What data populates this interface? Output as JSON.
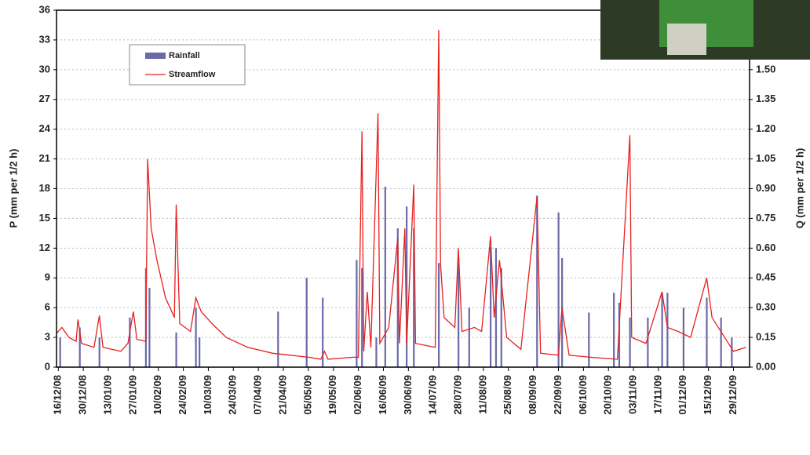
{
  "chart_data": {
    "type": "bar-line",
    "y_label": "P (mm per 1/2 h)",
    "y2_label": "Q (mm per 1/2 h)",
    "xlim": [
      "15/12/08",
      "07/01/10"
    ],
    "xticks": [
      "16/12/08",
      "30/12/08",
      "13/01/09",
      "27/01/09",
      "10/02/09",
      "24/02/09",
      "10/03/09",
      "24/03/09",
      "07/04/09",
      "21/04/09",
      "05/05/09",
      "19/05/09",
      "02/06/09",
      "16/06/09",
      "30/06/09",
      "14/07/09",
      "28/07/09",
      "11/08/09",
      "25/08/09",
      "08/09/09",
      "22/09/09",
      "06/10/09",
      "20/10/09",
      "03/11/09",
      "17/11/09",
      "01/12/09",
      "15/12/09",
      "29/12/09"
    ],
    "ylim": [
      0,
      36
    ],
    "yticks": [
      0,
      3,
      6,
      9,
      12,
      15,
      18,
      21,
      24,
      27,
      30,
      33,
      36
    ],
    "y2lim": [
      0,
      1.8
    ],
    "y2ticks": [
      {
        "value": 0,
        "label": "0.00"
      },
      {
        "value": 0.15,
        "label": "0.15"
      },
      {
        "value": 0.3,
        "label": "0.30"
      },
      {
        "value": 0.45,
        "label": "0.45"
      },
      {
        "value": 0.6,
        "label": "0.60"
      },
      {
        "value": 0.75,
        "label": "0.75"
      },
      {
        "value": 0.9,
        "label": "0.90"
      },
      {
        "value": 1.05,
        "label": "1.05"
      },
      {
        "value": 1.2,
        "label": "1.20"
      },
      {
        "value": 1.35,
        "label": "1.35"
      },
      {
        "value": 1.5,
        "label": "1.50"
      }
    ],
    "grid": true,
    "legend": "upper left",
    "series": [
      {
        "name": "Rainfall",
        "type": "bar",
        "color": "#6a6aa8",
        "x": [
          "17/12/08",
          "28/12/08",
          "08/01/09",
          "25/01/09",
          "03/02/09",
          "05/02/09",
          "20/02/09",
          "03/03/09",
          "05/03/09",
          "18/04/09",
          "04/05/09",
          "13/05/09",
          "01/06/09",
          "04/06/09",
          "12/06/09",
          "17/06/09",
          "24/06/09",
          "29/06/09",
          "03/07/09",
          "17/07/09",
          "28/07/09",
          "03/08/09",
          "15/08/09",
          "18/08/09",
          "21/08/09",
          "10/09/09",
          "22/09/09",
          "24/09/09",
          "09/10/09",
          "23/10/09",
          "26/10/09",
          "01/11/09",
          "11/11/09",
          "19/11/09",
          "22/11/09",
          "01/12/09",
          "14/12/09",
          "22/12/09",
          "28/12/09"
        ],
        "values": [
          3,
          4,
          3,
          5,
          10,
          8,
          3.5,
          6,
          3,
          5.6,
          9,
          7,
          10.8,
          10,
          3,
          18.2,
          14,
          16.2,
          14,
          10.5,
          11,
          6,
          12.1,
          12,
          10,
          17.3,
          15.6,
          11,
          5.5,
          7.5,
          6.5,
          5,
          5,
          7.5,
          7.5,
          6,
          7,
          5,
          3
        ]
      },
      {
        "name": "Streamflow",
        "type": "line",
        "axis": "y2",
        "color": "#e8201e",
        "x": [
          "15/12/08",
          "18/12/08",
          "22/12/08",
          "26/12/08",
          "27/12/08",
          "29/12/08",
          "05/01/09",
          "08/01/09",
          "10/01/09",
          "20/01/09",
          "24/01/09",
          "27/01/09",
          "29/01/09",
          "03/02/09",
          "04/02/09",
          "06/02/09",
          "09/02/09",
          "14/02/09",
          "19/02/09",
          "20/02/09",
          "22/02/09",
          "28/02/09",
          "03/03/09",
          "06/03/09",
          "12/03/09",
          "20/03/09",
          "01/04/09",
          "15/04/09",
          "25/04/09",
          "05/05/09",
          "12/05/09",
          "14/05/09",
          "16/05/09",
          "30/05/09",
          "02/06/09",
          "04/06/09",
          "05/06/09",
          "07/06/09",
          "09/06/09",
          "13/06/09",
          "14/06/09",
          "19/06/09",
          "24/06/09",
          "25/06/09",
          "28/06/09",
          "29/06/09",
          "03/07/09",
          "04/07/09",
          "15/07/09",
          "17/07/09",
          "18/07/09",
          "20/07/09",
          "26/07/09",
          "28/07/09",
          "30/07/09",
          "06/08/09",
          "10/08/09",
          "15/08/09",
          "17/08/09",
          "20/08/09",
          "24/08/09",
          "01/09/09",
          "10/09/09",
          "12/09/09",
          "22/09/09",
          "24/09/09",
          "28/09/09",
          "10/10/09",
          "25/10/09",
          "01/11/09",
          "02/11/09",
          "10/11/09",
          "19/11/09",
          "22/11/09",
          "28/11/09",
          "05/12/09",
          "14/12/09",
          "17/12/09",
          "29/12/09",
          "05/01/10"
        ],
        "values": [
          0.17,
          0.2,
          0.15,
          0.13,
          0.24,
          0.12,
          0.1,
          0.26,
          0.1,
          0.08,
          0.12,
          0.28,
          0.14,
          0.13,
          1.05,
          0.7,
          0.55,
          0.35,
          0.25,
          0.82,
          0.22,
          0.18,
          0.35,
          0.28,
          0.22,
          0.15,
          0.1,
          0.07,
          0.06,
          0.05,
          0.04,
          0.08,
          0.04,
          0.05,
          0.05,
          1.19,
          0.08,
          0.38,
          0.1,
          1.28,
          0.12,
          0.2,
          0.65,
          0.12,
          0.7,
          0.12,
          0.92,
          0.12,
          0.1,
          1.7,
          0.52,
          0.25,
          0.2,
          0.6,
          0.18,
          0.2,
          0.18,
          0.66,
          0.25,
          0.54,
          0.15,
          0.09,
          0.86,
          0.07,
          0.06,
          0.3,
          0.06,
          0.05,
          0.04,
          1.17,
          0.15,
          0.12,
          0.38,
          0.2,
          0.18,
          0.15,
          0.45,
          0.25,
          0.08,
          0.1
        ]
      }
    ]
  }
}
